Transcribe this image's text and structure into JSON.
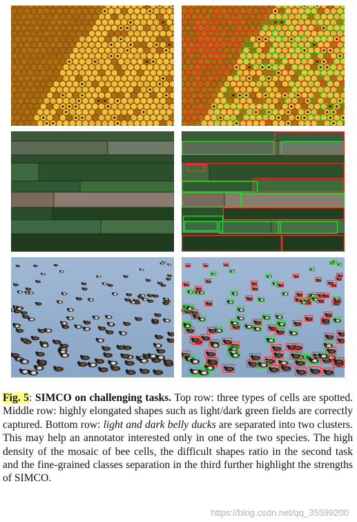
{
  "figure": {
    "panels": [
      {
        "row": "top",
        "side": "left",
        "content": "honeycomb-cells",
        "annotated": false
      },
      {
        "row": "top",
        "side": "right",
        "content": "honeycomb-cells",
        "annotated": true
      },
      {
        "row": "middle",
        "side": "left",
        "content": "green-fields",
        "annotated": false
      },
      {
        "row": "middle",
        "side": "right",
        "content": "green-fields",
        "annotated": true
      },
      {
        "row": "bottom",
        "side": "left",
        "content": "ducks",
        "annotated": false
      },
      {
        "row": "bottom",
        "side": "right",
        "content": "ducks",
        "annotated": true
      }
    ],
    "box_colors": {
      "class_a": "#ff2a2a",
      "class_b": "#2bd42b"
    }
  },
  "caption": {
    "label": "Fig. 5",
    "sep": ": ",
    "title": "SIMCO on challenging tasks.",
    "text1": " Top row: three types of cells are spotted. Middle row: highly elongated shapes such as light/dark green fields are correctly captured. Bottom row: ",
    "italic": "light and dark belly ducks",
    "text2": " are separated into two clusters. This may help an annotator interested only in one of the two species. The high density of the mosaic of bee cells, the difficult shapes ratio in the second task and the fine-grained classes separation in the third further highlight the strengths of SIMCO."
  },
  "watermark": "https://blog.csdn.net/qq_35599200"
}
